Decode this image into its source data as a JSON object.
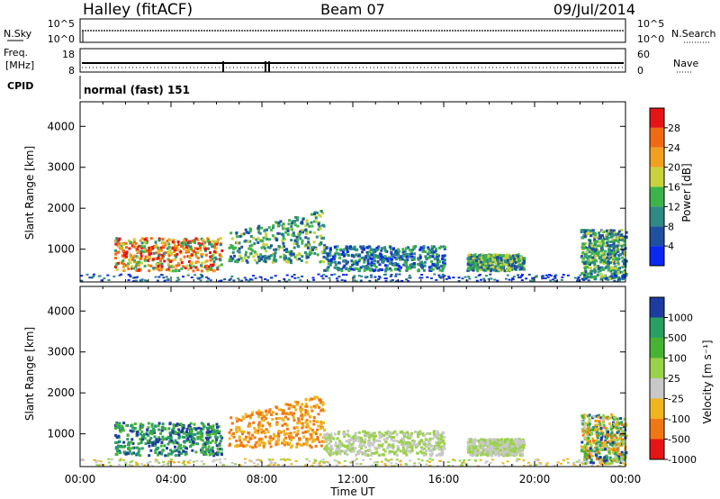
{
  "header": {
    "station": "Halley (fitACF)",
    "beam": "Beam 07",
    "date": "09/Jul/2014"
  },
  "noise_panel": {
    "left_label": "N.Sky",
    "right_label": "N.Search",
    "left_ticks": [
      "10^5",
      "10^0"
    ],
    "right_ticks": [
      "10^5",
      "10^0"
    ]
  },
  "freq_panel": {
    "left_label_1": "Freq.",
    "left_label_2": "[MHz]",
    "right_label": "Nave",
    "left_ticks": [
      "18",
      "8"
    ],
    "right_ticks": [
      "60",
      "0"
    ]
  },
  "cpid": {
    "label": "CPID",
    "value": "normal (fast) 151"
  },
  "chart_data": [
    {
      "type": "heatmap",
      "name": "power",
      "ylabel": "Slant Range [km]",
      "yticks": [
        "1000",
        "2000",
        "3000",
        "4000"
      ],
      "ylim": [
        200,
        4600
      ],
      "colorbar_label": "Power [dB]",
      "colorbar_ticks": [
        "4",
        "8",
        "12",
        "16",
        "20",
        "24",
        "28"
      ],
      "colors": [
        "#0a28f0",
        "#1e50a0",
        "#2e8a82",
        "#3cb44a",
        "#c8d23c",
        "#f0a01e",
        "#f06a14",
        "#e61414"
      ],
      "regions": [
        {
          "t": [
            1.5,
            6.2
          ],
          "r": [
            500,
            1300
          ],
          "level": 3
        },
        {
          "t": [
            6.5,
            10.7
          ],
          "r": [
            700,
            2000
          ],
          "level": 2
        },
        {
          "t": [
            10.7,
            16
          ],
          "r": [
            500,
            1100
          ],
          "level": 1
        },
        {
          "t": [
            17,
            19.5
          ],
          "r": [
            500,
            900
          ],
          "level": 2
        },
        {
          "t": [
            22,
            24
          ],
          "r": [
            300,
            1500
          ],
          "level": 2
        }
      ]
    },
    {
      "type": "heatmap",
      "name": "velocity",
      "ylabel": "Slant Range [km]",
      "yticks": [
        "1000",
        "2000",
        "3000",
        "4000"
      ],
      "ylim": [
        200,
        4600
      ],
      "colorbar_label": "Velocity [m s⁻¹]",
      "colorbar_ticks": [
        "1000",
        "500",
        "100",
        "25",
        "-25",
        "-100",
        "-500",
        "-1000"
      ],
      "colors": [
        "#1e3ca0",
        "#28a064",
        "#46b432",
        "#9ad24a",
        "#c8c8c8",
        "#f0b41e",
        "#f07814",
        "#e61414"
      ],
      "xticks": [
        "00:00",
        "04:00",
        "08:00",
        "12:00",
        "16:00",
        "20:00",
        "00:00"
      ],
      "xlabel": "Time UT",
      "xlim": [
        0,
        24
      ]
    }
  ]
}
